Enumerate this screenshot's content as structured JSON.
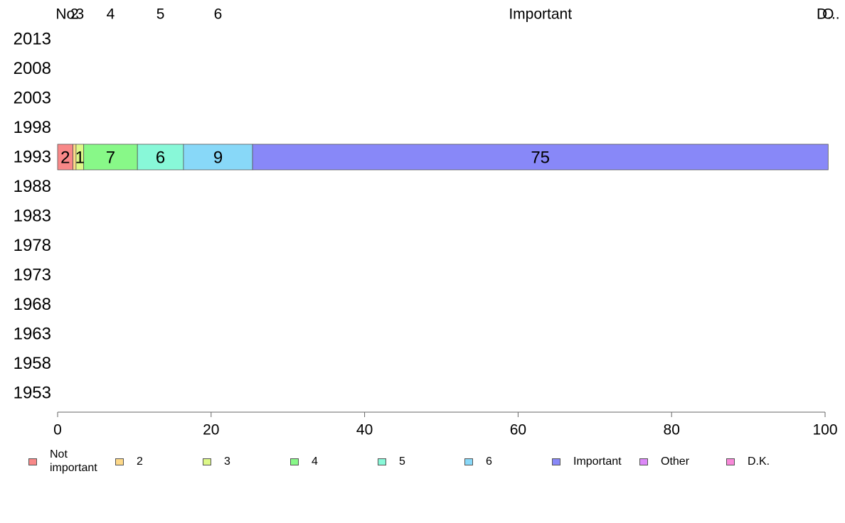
{
  "chart_data": {
    "type": "bar",
    "orientation": "horizontal",
    "stacked": true,
    "categories": [
      "2013",
      "2008",
      "2003",
      "1998",
      "1993",
      "1988",
      "1983",
      "1978",
      "1973",
      "1968",
      "1963",
      "1958",
      "1953"
    ],
    "series": [
      {
        "name": "Not important",
        "color": "#f88888",
        "values": [
          null,
          null,
          null,
          null,
          2,
          null,
          null,
          null,
          null,
          null,
          null,
          null,
          null
        ]
      },
      {
        "name": "2",
        "color": "#fdd888",
        "values": [
          null,
          null,
          null,
          null,
          0.4,
          null,
          null,
          null,
          null,
          null,
          null,
          null,
          null
        ]
      },
      {
        "name": "3",
        "color": "#ddf888",
        "values": [
          null,
          null,
          null,
          null,
          1,
          null,
          null,
          null,
          null,
          null,
          null,
          null,
          null
        ]
      },
      {
        "name": "4",
        "color": "#88f888",
        "values": [
          null,
          null,
          null,
          null,
          7,
          null,
          null,
          null,
          null,
          null,
          null,
          null,
          null
        ]
      },
      {
        "name": "5",
        "color": "#88f8d8",
        "values": [
          null,
          null,
          null,
          null,
          6,
          null,
          null,
          null,
          null,
          null,
          null,
          null,
          null
        ]
      },
      {
        "name": "6",
        "color": "#88d8f8",
        "values": [
          null,
          null,
          null,
          null,
          9,
          null,
          null,
          null,
          null,
          null,
          null,
          null,
          null
        ]
      },
      {
        "name": "Important",
        "color": "#8888f8",
        "values": [
          null,
          null,
          null,
          null,
          75,
          null,
          null,
          null,
          null,
          null,
          null,
          null,
          null
        ]
      },
      {
        "name": "Other",
        "color": "#dd88f8",
        "values": [
          null,
          null,
          null,
          null,
          0,
          null,
          null,
          null,
          null,
          null,
          null,
          null,
          null
        ]
      },
      {
        "name": "D.K.",
        "color": "#f888d8",
        "values": [
          null,
          null,
          null,
          null,
          0,
          null,
          null,
          null,
          null,
          null,
          null,
          null,
          null
        ]
      }
    ],
    "data_labels": [
      {
        "category": "1993",
        "series": "Not important",
        "text": "2"
      },
      {
        "category": "1993",
        "series": "3",
        "text": "1"
      },
      {
        "category": "1993",
        "series": "4",
        "text": "7"
      },
      {
        "category": "1993",
        "series": "5",
        "text": "6"
      },
      {
        "category": "1993",
        "series": "6",
        "text": "9"
      },
      {
        "category": "1993",
        "series": "Important",
        "text": "75"
      }
    ],
    "top_labels": [
      {
        "series": "Not important",
        "text": "No"
      },
      {
        "series": "2",
        "text": "2"
      },
      {
        "series": "3",
        "text": "3"
      },
      {
        "series": "4",
        "text": "4"
      },
      {
        "series": "5",
        "text": "5"
      },
      {
        "series": "6",
        "text": "6"
      },
      {
        "series": "Important",
        "text": "Important"
      },
      {
        "series": "Other",
        "text": "O"
      },
      {
        "series": "D.K.",
        "text": "D..."
      }
    ],
    "xlim": [
      0,
      100
    ],
    "xticks": [
      0,
      20,
      40,
      60,
      80,
      100
    ],
    "grid": false,
    "legend_position": "bottom"
  },
  "legend": [
    {
      "label": "Not important",
      "color": "#f88888"
    },
    {
      "label": "2",
      "color": "#fdd888"
    },
    {
      "label": "3",
      "color": "#ddf888"
    },
    {
      "label": "4",
      "color": "#88f888"
    },
    {
      "label": "5",
      "color": "#88f8d8"
    },
    {
      "label": "6",
      "color": "#88d8f8"
    },
    {
      "label": "Important",
      "color": "#8888f8"
    },
    {
      "label": "Other",
      "color": "#dd88f8"
    },
    {
      "label": "D.K.",
      "color": "#f888d8"
    }
  ]
}
